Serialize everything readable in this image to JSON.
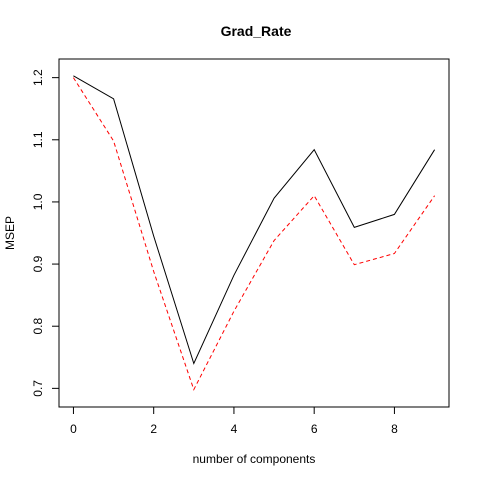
{
  "chart_data": {
    "type": "line",
    "title": "Grad_Rate",
    "xlabel": "number of components",
    "ylabel": "MSEP",
    "xlim": [
      -0.36,
      9.36
    ],
    "ylim": [
      0.67,
      1.23
    ],
    "x_ticks": [
      0,
      2,
      4,
      6,
      8
    ],
    "y_ticks": [
      0.7,
      0.8,
      0.9,
      1.0,
      1.1,
      1.2
    ],
    "x_tick_labels": [
      "0",
      "2",
      "4",
      "6",
      "8"
    ],
    "y_tick_labels": [
      "0.7",
      "0.8",
      "0.9",
      "1.0",
      "1.1",
      "1.2"
    ],
    "grid": false,
    "x": [
      0,
      1,
      2,
      3,
      4,
      5,
      6,
      7,
      8,
      9
    ],
    "series": [
      {
        "color": "#000000",
        "line_style": "solid",
        "values": [
          1.203,
          1.166,
          0.945,
          0.74,
          0.882,
          1.006,
          1.084,
          0.959,
          0.98,
          1.084
        ]
      },
      {
        "color": "#ff0000",
        "line_style": "dashed",
        "values": [
          1.2,
          1.098,
          0.888,
          0.698,
          0.824,
          0.938,
          1.01,
          0.899,
          0.917,
          1.01
        ]
      }
    ]
  }
}
